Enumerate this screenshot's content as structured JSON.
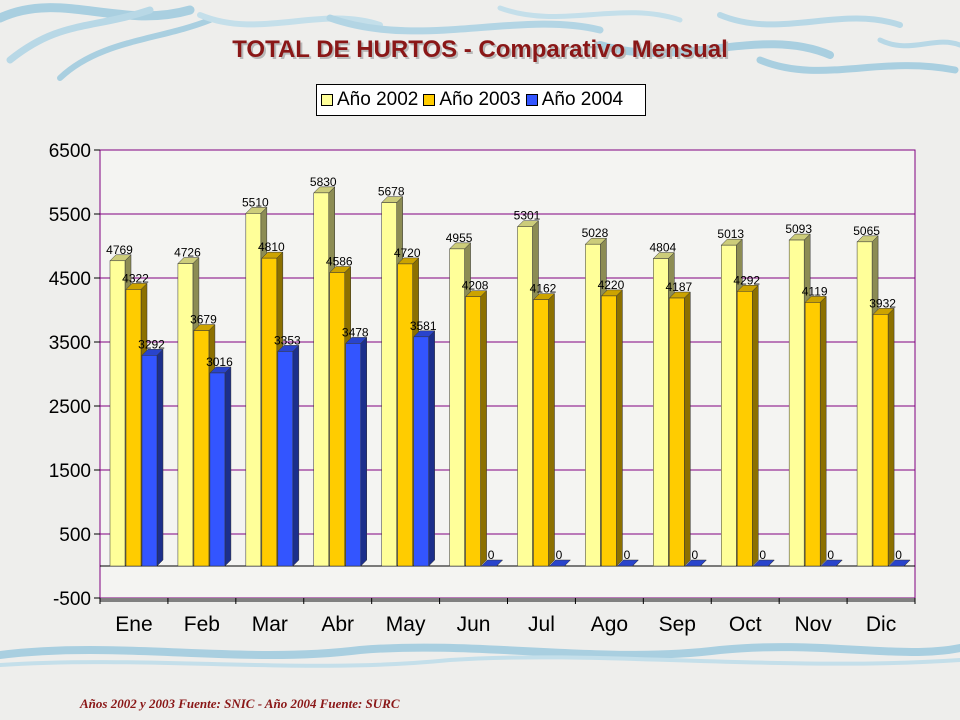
{
  "title_main": "TOTAL DE HURTOS",
  "title_sep": " - ",
  "title_sub": "Comparativo Mensual",
  "footnote": "Años 2002 y 2003 Fuente: SNIC - Año 2004 Fuente: SURC",
  "colors": {
    "title": "#8a1717",
    "series_2002": "#ffff99",
    "series_2003": "#ffcc00",
    "series_2004": "#3355ff",
    "plot_border": "#800080",
    "gridline": "#800080"
  },
  "chart_data": {
    "type": "bar",
    "title": "TOTAL DE HURTOS - Comparativo Mensual",
    "xlabel": "",
    "ylabel": "",
    "categories": [
      "Ene",
      "Feb",
      "Mar",
      "Abr",
      "May",
      "Jun",
      "Jul",
      "Ago",
      "Sep",
      "Oct",
      "Nov",
      "Dic"
    ],
    "series": [
      {
        "name": "Año 2002",
        "values": [
          4769,
          4726,
          5510,
          5830,
          5678,
          4955,
          5301,
          5028,
          4804,
          5013,
          5093,
          5065
        ]
      },
      {
        "name": "Año 2003",
        "values": [
          4322,
          3679,
          4810,
          4586,
          4720,
          4208,
          4162,
          4220,
          4187,
          4292,
          4119,
          3932
        ]
      },
      {
        "name": "Año 2004",
        "values": [
          3292,
          3016,
          3353,
          3478,
          3581,
          0,
          0,
          0,
          0,
          0,
          0,
          0
        ]
      }
    ],
    "ylim": [
      -500,
      6500
    ],
    "yticks": [
      -500,
      500,
      1500,
      2500,
      3500,
      4500,
      5500,
      6500
    ],
    "grid": true,
    "legend_position": "top-center",
    "style": "3d-clustered-column"
  }
}
